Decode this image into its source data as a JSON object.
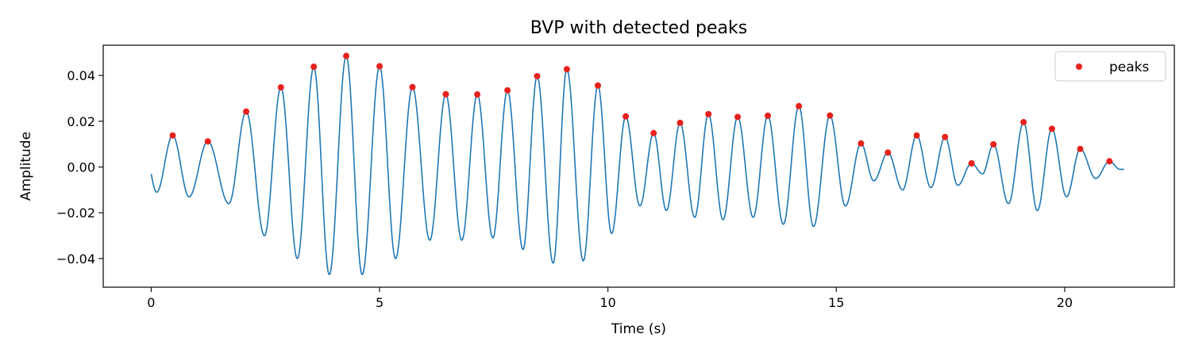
{
  "chart_data": {
    "type": "line",
    "title": "BVP with detected peaks",
    "xlabel": "Time (s)",
    "ylabel": "Amplitude",
    "xlim": [
      -1.05,
      22.4
    ],
    "ylim": [
      -0.0525,
      0.0532
    ],
    "xticks": [
      0,
      5,
      10,
      15,
      20
    ],
    "xtick_labels": [
      "0",
      "5",
      "10",
      "15",
      "20"
    ],
    "yticks": [
      -0.04,
      -0.02,
      0.0,
      0.02,
      0.04
    ],
    "ytick_labels": [
      "−0.04",
      "−0.02",
      "0.00",
      "0.02",
      "0.04"
    ],
    "grid": false,
    "legend": {
      "position": "top-right",
      "entries": [
        "peaks"
      ]
    },
    "colors": {
      "signal": "#1f77b4",
      "peaks": "#e8211d"
    },
    "signal": {
      "start": [
        0.0,
        -0.003
      ],
      "end": [
        21.3,
        -0.001
      ],
      "troughs": [
        [
          0.12,
          -0.011
        ],
        [
          0.83,
          -0.013
        ],
        [
          1.7,
          -0.016
        ],
        [
          2.48,
          -0.03
        ],
        [
          3.2,
          -0.04
        ],
        [
          3.9,
          -0.047
        ],
        [
          4.62,
          -0.047
        ],
        [
          5.35,
          -0.04
        ],
        [
          6.1,
          -0.032
        ],
        [
          6.8,
          -0.032
        ],
        [
          7.48,
          -0.031
        ],
        [
          8.14,
          -0.036
        ],
        [
          8.8,
          -0.042
        ],
        [
          9.46,
          -0.041
        ],
        [
          10.08,
          -0.029
        ],
        [
          10.7,
          -0.017
        ],
        [
          11.28,
          -0.019
        ],
        [
          11.9,
          -0.022
        ],
        [
          12.52,
          -0.023
        ],
        [
          13.18,
          -0.022
        ],
        [
          13.84,
          -0.025
        ],
        [
          14.5,
          -0.026
        ],
        [
          15.2,
          -0.017
        ],
        [
          15.82,
          -0.006
        ],
        [
          16.45,
          -0.01
        ],
        [
          17.07,
          -0.009
        ],
        [
          17.66,
          -0.008
        ],
        [
          18.2,
          -0.003
        ],
        [
          18.77,
          -0.016
        ],
        [
          19.4,
          -0.019
        ],
        [
          20.04,
          -0.013
        ],
        [
          20.68,
          -0.005
        ],
        [
          21.21,
          -0.001
        ]
      ]
    },
    "peaks": {
      "name": "peaks",
      "x": [
        0.47,
        1.24,
        2.08,
        2.84,
        3.56,
        4.27,
        5.0,
        5.72,
        6.45,
        7.14,
        7.8,
        8.45,
        9.1,
        9.78,
        10.39,
        11.0,
        11.58,
        12.2,
        12.84,
        13.5,
        14.18,
        14.86,
        15.54,
        16.13,
        16.76,
        17.38,
        17.96,
        18.44,
        19.1,
        19.72,
        20.34,
        20.98
      ],
      "y": [
        0.0138,
        0.0112,
        0.0242,
        0.0348,
        0.0438,
        0.0485,
        0.044,
        0.0349,
        0.0318,
        0.0317,
        0.0335,
        0.0397,
        0.0427,
        0.0356,
        0.0221,
        0.0148,
        0.0193,
        0.0231,
        0.0219,
        0.0224,
        0.0266,
        0.0225,
        0.0103,
        0.0063,
        0.0138,
        0.0131,
        0.0016,
        0.0099,
        0.0196,
        0.0167,
        0.0079,
        0.0025
      ]
    }
  }
}
